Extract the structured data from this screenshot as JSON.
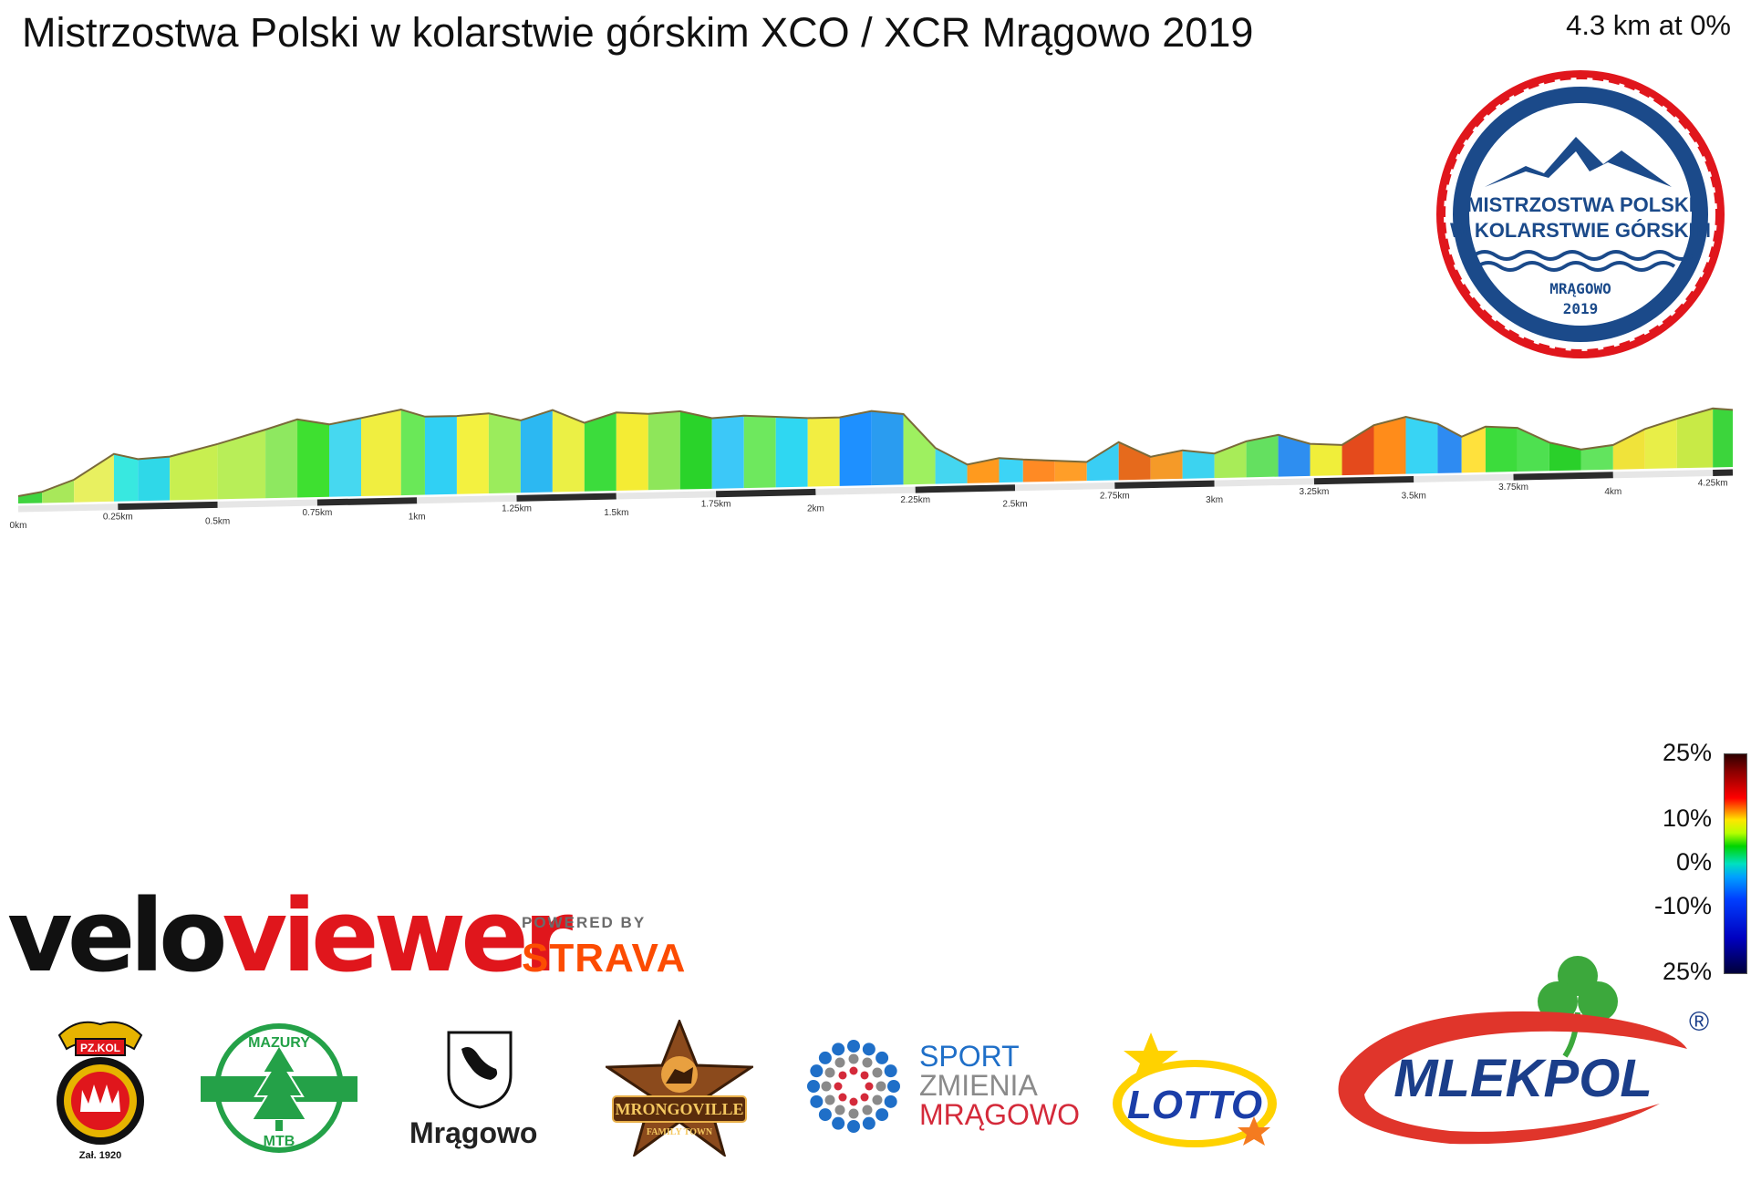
{
  "header": {
    "title": "Mistrzostwa Polski w kolarstwie górskim XCO / XCR Mrągowo 2019",
    "summary": "4.3 km at 0%"
  },
  "event_badge": {
    "line1": "MISTRZOSTWA POLSKI",
    "line2": "W KOLARSTWIE GÓRSKIM",
    "town": "MRĄGOWO",
    "year": "2019"
  },
  "gradient_scale": {
    "labels": [
      "25%",
      "10%",
      "0%",
      "-10%",
      "25%"
    ]
  },
  "branding": {
    "velo_part1": "velo",
    "velo_part2": "viewer",
    "powered_by": "POWERED BY",
    "strava": "STRAVA"
  },
  "sponsors": {
    "pzkol_name": "PZ.KOL",
    "pzkol_year": "Zał. 1920",
    "mazury_top": "MAZURY",
    "mazury_bottom": "MTB",
    "mragowo": "Mrągowo",
    "mrongoville": "MRONGOVILLE",
    "mrongoville_sub": "FAMILY TOWN",
    "sport1": "SPORT",
    "sport2": "ZMIENIA",
    "sport3": "MRĄGOWO",
    "lotto": "LOTTO",
    "mlekpol": "MLEKPOL",
    "registered": "®"
  },
  "colors": {
    "accent_red": "#e0161c",
    "badge_blue": "#1b4a8a",
    "strava_orange": "#fc4c02"
  },
  "chart_data": {
    "type": "area",
    "title": "",
    "xlabel": "",
    "ylabel": "",
    "x_unit": "km",
    "xlim": [
      0,
      4.3
    ],
    "distance_ticks": [
      "0km",
      "0.25km",
      "0.5km",
      "0.75km",
      "1km",
      "1.25km",
      "1.5km",
      "1.75km",
      "2km",
      "2.25km",
      "2.5km",
      "2.75km",
      "3km",
      "3.25km",
      "3.5km",
      "3.75km",
      "4km",
      "4.25km"
    ],
    "tick_values": [
      0,
      0.25,
      0.5,
      0.75,
      1.0,
      1.25,
      1.5,
      1.75,
      2.0,
      2.25,
      2.5,
      2.75,
      3.0,
      3.25,
      3.5,
      3.75,
      4.0,
      4.25
    ],
    "profile_x": [
      0,
      0.06,
      0.14,
      0.24,
      0.3,
      0.38,
      0.5,
      0.62,
      0.7,
      0.78,
      0.86,
      0.96,
      1.02,
      1.1,
      1.18,
      1.26,
      1.34,
      1.42,
      1.5,
      1.58,
      1.66,
      1.74,
      1.82,
      1.9,
      1.98,
      2.06,
      2.14,
      2.22,
      2.3,
      2.38,
      2.46,
      2.52,
      2.6,
      2.68,
      2.76,
      2.84,
      2.92,
      3.0,
      3.08,
      3.16,
      3.24,
      3.32,
      3.4,
      3.48,
      3.56,
      3.62,
      3.68,
      3.76,
      3.84,
      3.92,
      4.0,
      4.08,
      4.16,
      4.25,
      4.3
    ],
    "profile_y": [
      0,
      1.0,
      4.0,
      10.5,
      9.0,
      9.5,
      12.5,
      16.0,
      18.5,
      17.0,
      18.5,
      20.5,
      18.5,
      18.5,
      19.0,
      17.0,
      19.5,
      16.0,
      18.5,
      18.0,
      18.5,
      16.5,
      17.0,
      16.5,
      16.0,
      16.0,
      17.5,
      16.5,
      7.5,
      3.0,
      4.5,
      4.0,
      3.5,
      3.0,
      8.0,
      4.0,
      5.5,
      4.5,
      7.5,
      9.0,
      6.5,
      6.0,
      11.0,
      13.0,
      11.0,
      7.5,
      10.0,
      9.5,
      5.5,
      3.5,
      4.5,
      8.5,
      11.0,
      13.5,
      13.0
    ],
    "gradient_colors": [
      "#3fd43f",
      "#a8e85a",
      "#e8f060",
      "#38e8e0",
      "#2fd8e8",
      "#c8ef50",
      "#b8ee58",
      "#8ee860",
      "#3ee030",
      "#46d8f0",
      "#f0ee40",
      "#6ae858",
      "#30d0f4",
      "#f3f140",
      "#9bec5c",
      "#2cb8f2",
      "#ebf045",
      "#3cdc3c",
      "#f4ec34",
      "#8ee65a",
      "#2ad32a",
      "#3cc8f8",
      "#6ee85e",
      "#2fd7f2",
      "#f2ee42",
      "#1e90ff",
      "#2a9cf0",
      "#9ef060",
      "#44d6f0",
      "#ff9a1e",
      "#3cd4f6",
      "#ff8a24",
      "#ff9e28",
      "#39cef4",
      "#e66a1c",
      "#f59a28",
      "#3cd3f0",
      "#a8ec58",
      "#64e060",
      "#2e8ef0",
      "#f0ee3a",
      "#e44a1c",
      "#ff8c1a",
      "#38d4f4",
      "#2e8bf2",
      "#ffe13c",
      "#3cdc3c",
      "#4ee050",
      "#2ad02a",
      "#62e45e",
      "#f0e33a",
      "#e8ee48",
      "#c8ea46",
      "#3cd53c"
    ]
  }
}
